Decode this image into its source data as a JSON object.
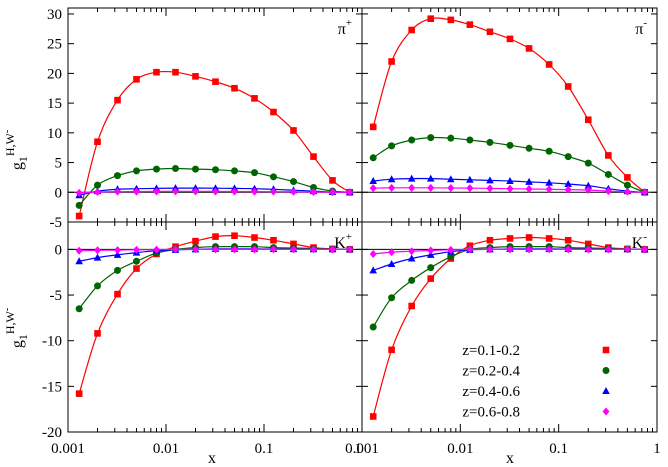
{
  "chart_data": {
    "type": "line",
    "xlabel": "x",
    "ylabel_prefix": "g",
    "ylabel_sub": "1",
    "ylabel_sup": "H,W",
    "ylabel_sup2": "-",
    "x_scale": "log",
    "xlim": [
      0.001,
      1
    ],
    "x_ticks": [
      0.001,
      0.01,
      0.1,
      1
    ],
    "x_tick_labels_left": [
      "0.001",
      "0.01",
      "0.1",
      "1"
    ],
    "x_tick_labels_right": [
      "0.001",
      "0.01",
      "0.1",
      "1"
    ],
    "grid": false,
    "legend_position": "bottom-right panel, lower-right",
    "series_colors": {
      "z=0.1-0.2": "#ff0000",
      "z=0.2-0.4": "#006400",
      "z=0.4-0.6": "#0000ff",
      "z=0.6-0.8": "#ff00ff"
    },
    "legend": [
      {
        "name": "z=0.1-0.2",
        "marker": "square",
        "color": "#ff0000"
      },
      {
        "name": "z=0.2-0.4",
        "marker": "circle",
        "color": "#006400"
      },
      {
        "name": "z=0.4-0.6",
        "marker": "triangle",
        "color": "#0000ff"
      },
      {
        "name": "z=0.6-0.8",
        "marker": "diamond",
        "color": "#ff00ff"
      }
    ],
    "x": [
      0.0013,
      0.002,
      0.0032,
      0.005,
      0.008,
      0.0125,
      0.02,
      0.032,
      0.05,
      0.08,
      0.125,
      0.2,
      0.32,
      0.5,
      0.75
    ],
    "top_ylim": [
      -5,
      31
    ],
    "top_y_ticks": [
      -5,
      0,
      5,
      10,
      15,
      20,
      25,
      30
    ],
    "top_y_tick_labels": [
      "-5",
      "0",
      "5",
      "10",
      "15",
      "20",
      "25",
      "30"
    ],
    "bottom_ylim": [
      -20,
      3
    ],
    "bottom_y_ticks": [
      -20,
      -15,
      -10,
      -5,
      0
    ],
    "bottom_y_tick_labels": [
      "-20",
      "-15",
      "-10",
      "-5",
      "0"
    ],
    "panels": [
      {
        "label": "π",
        "label_sup": "+",
        "row": "top",
        "col": "left",
        "series": [
          {
            "name": "z=0.1-0.2",
            "values": [
              -4,
              8.5,
              15.5,
              19,
              20.2,
              20.2,
              19.5,
              18.6,
              17.5,
              15.8,
              13.5,
              10.4,
              6.0,
              2.0,
              0
            ]
          },
          {
            "name": "z=0.2-0.4",
            "values": [
              -2.2,
              1.2,
              2.8,
              3.6,
              3.9,
              4.0,
              3.9,
              3.8,
              3.6,
              3.3,
              2.6,
              1.8,
              0.8,
              0.2,
              0
            ]
          },
          {
            "name": "z=0.4-0.6",
            "values": [
              -0.5,
              0.2,
              0.5,
              0.6,
              0.65,
              0.7,
              0.7,
              0.68,
              0.65,
              0.6,
              0.5,
              0.35,
              0.2,
              0.05,
              0
            ]
          },
          {
            "name": "z=0.6-0.8",
            "values": [
              -0.1,
              0.05,
              0.1,
              0.12,
              0.14,
              0.15,
              0.15,
              0.14,
              0.13,
              0.12,
              0.1,
              0.08,
              0.05,
              0.02,
              0
            ]
          }
        ]
      },
      {
        "label": "π",
        "label_sup": "-",
        "row": "top",
        "col": "right",
        "series": [
          {
            "name": "z=0.1-0.2",
            "values": [
              11,
              22,
              27.3,
              29.2,
              29.0,
              28.2,
              27.0,
              25.8,
              24.2,
              21.5,
              17.8,
              12.2,
              6.2,
              2.5,
              0
            ]
          },
          {
            "name": "z=0.2-0.4",
            "values": [
              5.8,
              7.8,
              8.8,
              9.2,
              9.1,
              8.8,
              8.4,
              7.9,
              7.4,
              6.9,
              6.0,
              4.9,
              3.0,
              1.2,
              0
            ]
          },
          {
            "name": "z=0.4-0.6",
            "values": [
              1.9,
              2.2,
              2.3,
              2.3,
              2.2,
              2.1,
              2.0,
              1.9,
              1.75,
              1.6,
              1.4,
              1.1,
              0.6,
              0.2,
              0
            ]
          },
          {
            "name": "z=0.6-0.8",
            "values": [
              0.7,
              0.75,
              0.75,
              0.75,
              0.72,
              0.7,
              0.65,
              0.6,
              0.55,
              0.5,
              0.45,
              0.38,
              0.2,
              0.08,
              0
            ]
          }
        ]
      },
      {
        "label": "K",
        "label_sup": "+",
        "row": "bottom",
        "col": "left",
        "series": [
          {
            "name": "z=0.1-0.2",
            "values": [
              -15.8,
              -9.2,
              -4.9,
              -2.1,
              -0.5,
              0.3,
              0.9,
              1.4,
              1.5,
              1.3,
              1.0,
              0.6,
              0.2,
              0.05,
              0
            ]
          },
          {
            "name": "z=0.2-0.4",
            "values": [
              -6.5,
              -4.0,
              -2.3,
              -1.3,
              -0.4,
              0.0,
              0.2,
              0.3,
              0.3,
              0.3,
              0.2,
              0.15,
              0.1,
              0.03,
              0
            ]
          },
          {
            "name": "z=0.4-0.6",
            "values": [
              -1.3,
              -0.9,
              -0.6,
              -0.35,
              -0.15,
              -0.05,
              0.0,
              0.05,
              0.05,
              0.05,
              0.04,
              0.03,
              0.02,
              0.01,
              0
            ]
          },
          {
            "name": "z=0.6-0.8",
            "values": [
              -0.15,
              -0.1,
              -0.08,
              -0.05,
              -0.02,
              0.0,
              0.0,
              0.0,
              0.0,
              0.0,
              0.0,
              0.0,
              0.0,
              0.0,
              0
            ]
          }
        ]
      },
      {
        "label": "K",
        "label_sup": "-",
        "row": "bottom",
        "col": "right",
        "series": [
          {
            "name": "z=0.1-0.2",
            "values": [
              -18.3,
              -11.0,
              -6.2,
              -3.2,
              -1.0,
              0.4,
              1.0,
              1.2,
              1.3,
              1.2,
              1.0,
              0.6,
              0.2,
              0.05,
              0
            ]
          },
          {
            "name": "z=0.2-0.4",
            "values": [
              -8.5,
              -5.3,
              -3.4,
              -2.0,
              -0.8,
              0.0,
              0.2,
              0.3,
              0.3,
              0.3,
              0.2,
              0.15,
              0.1,
              0.03,
              0
            ]
          },
          {
            "name": "z=0.4-0.6",
            "values": [
              -2.3,
              -1.6,
              -1.0,
              -0.6,
              -0.25,
              -0.05,
              0.0,
              0.05,
              0.05,
              0.05,
              0.04,
              0.03,
              0.02,
              0.01,
              0
            ]
          },
          {
            "name": "z=0.6-0.8",
            "values": [
              -0.5,
              -0.3,
              -0.2,
              -0.12,
              -0.05,
              0.0,
              0.0,
              0.0,
              0.0,
              0.0,
              0.0,
              0.0,
              0.0,
              0.0,
              0
            ]
          }
        ]
      }
    ]
  }
}
